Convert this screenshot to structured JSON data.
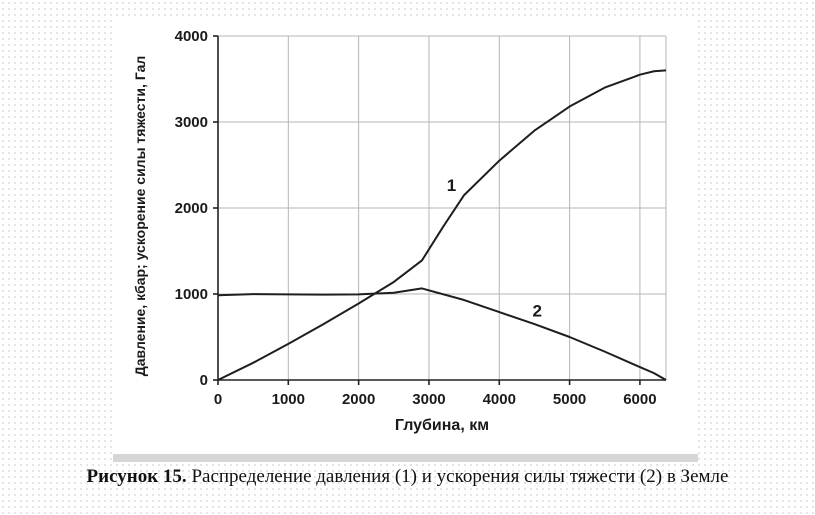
{
  "chart_data": {
    "type": "line",
    "xlabel": "Глубина, км",
    "ylabel": "Давление, кбар; ускорение силы тяжести, Гал",
    "xlim": [
      0,
      6371
    ],
    "ylim": [
      0,
      4000
    ],
    "x_ticks": [
      0,
      1000,
      2000,
      3000,
      4000,
      5000,
      6000
    ],
    "y_ticks": [
      0,
      1000,
      2000,
      3000,
      4000
    ],
    "grid": true,
    "series": [
      {
        "name": "1",
        "x": [
          0,
          500,
          1000,
          1500,
          2000,
          2500,
          2900,
          3200,
          3500,
          4000,
          4500,
          5000,
          5500,
          6000,
          6200,
          6371
        ],
        "y": [
          0,
          200,
          420,
          650,
          890,
          1140,
          1390,
          1780,
          2150,
          2550,
          2900,
          3180,
          3400,
          3550,
          3590,
          3600
        ]
      },
      {
        "name": "2",
        "x": [
          0,
          500,
          1000,
          1500,
          2000,
          2500,
          2900,
          3500,
          4000,
          4500,
          5000,
          5500,
          6000,
          6200,
          6371
        ],
        "y": [
          985,
          998,
          995,
          993,
          995,
          1015,
          1065,
          930,
          790,
          650,
          500,
          330,
          150,
          80,
          0
        ]
      }
    ]
  },
  "caption": {
    "label": "Рисунок 15.",
    "text": " Распределение давления (1) и ускорения силы тяжести (2) в Земле"
  }
}
